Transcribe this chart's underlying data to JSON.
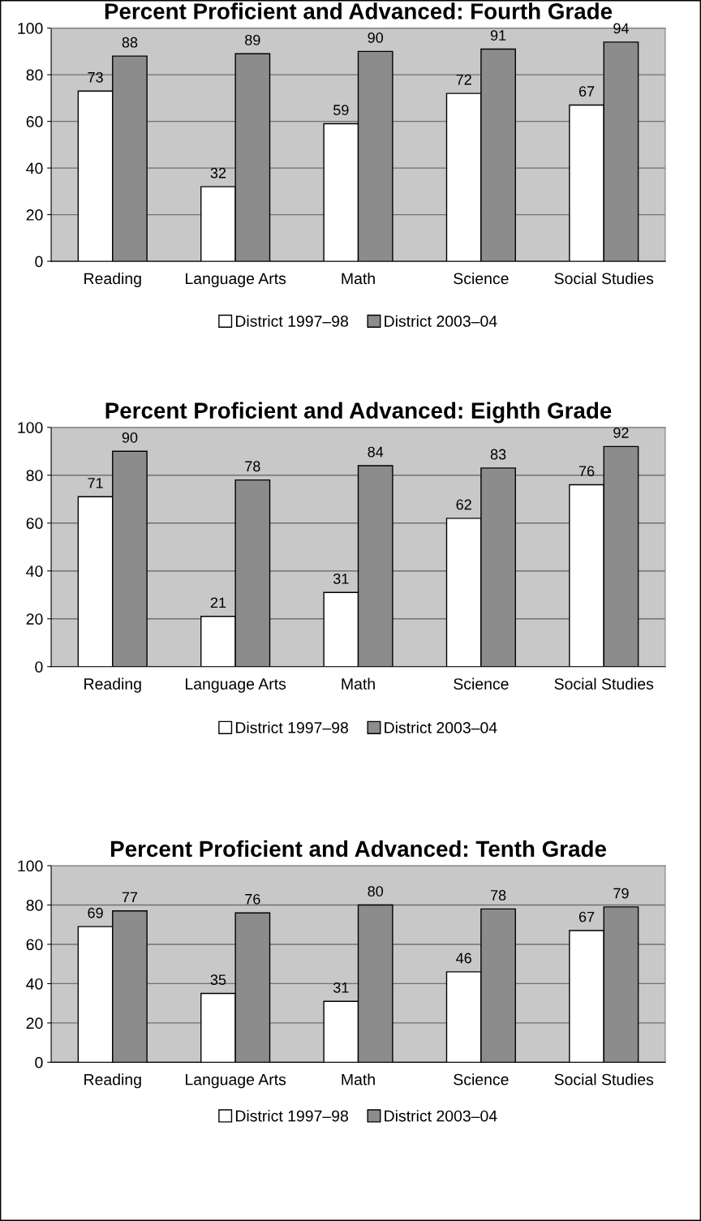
{
  "chart_data": [
    {
      "type": "bar",
      "title": "Percent Proficient and Advanced: Fourth Grade",
      "categories": [
        "Reading",
        "Language Arts",
        "Math",
        "Science",
        "Social Studies"
      ],
      "series": [
        {
          "name": "District 1997–98",
          "color": "#ffffff",
          "values": [
            73,
            32,
            59,
            72,
            67
          ]
        },
        {
          "name": "District 2003–04",
          "color": "#8c8c8c",
          "values": [
            88,
            89,
            90,
            91,
            94
          ]
        }
      ],
      "ylim": [
        0,
        100
      ],
      "yticks": [
        0,
        20,
        40,
        60,
        80,
        100
      ],
      "grid": "y",
      "legend": "bottom",
      "data_labels": true
    },
    {
      "type": "bar",
      "title": "Percent Proficient and Advanced: Eighth Grade",
      "categories": [
        "Reading",
        "Language Arts",
        "Math",
        "Science",
        "Social Studies"
      ],
      "series": [
        {
          "name": "District 1997–98",
          "color": "#ffffff",
          "values": [
            71,
            21,
            31,
            62,
            76
          ]
        },
        {
          "name": "District 2003–04",
          "color": "#8c8c8c",
          "values": [
            90,
            78,
            84,
            83,
            92
          ]
        }
      ],
      "ylim": [
        0,
        100
      ],
      "yticks": [
        0,
        20,
        40,
        60,
        80,
        100
      ],
      "grid": "y",
      "legend": "bottom",
      "data_labels": true
    },
    {
      "type": "bar",
      "title": "Percent Proficient and Advanced: Tenth Grade",
      "categories": [
        "Reading",
        "Language Arts",
        "Math",
        "Science",
        "Social Studies"
      ],
      "series": [
        {
          "name": "District 1997–98",
          "color": "#ffffff",
          "values": [
            69,
            35,
            31,
            46,
            67
          ]
        },
        {
          "name": "District 2003–04",
          "color": "#8c8c8c",
          "values": [
            77,
            76,
            80,
            78,
            79
          ]
        }
      ],
      "ylim": [
        0,
        100
      ],
      "yticks": [
        0,
        20,
        40,
        60,
        80,
        100
      ],
      "grid": "y",
      "legend": "bottom",
      "data_labels": true
    }
  ]
}
